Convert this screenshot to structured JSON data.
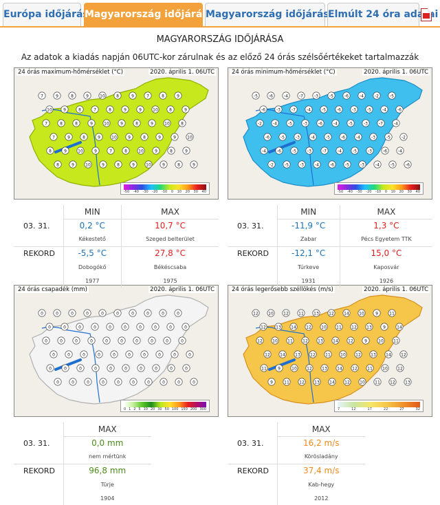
{
  "tabs": [
    {
      "label": "Európa időjárása",
      "active": false
    },
    {
      "label": "Magyarország időjárása I.",
      "active": true
    },
    {
      "label": "Magyarország időjárása II.",
      "active": false
    },
    {
      "label": "Elmúlt 24 óra adatai",
      "active": false
    }
  ],
  "pdf_icon": "pdf-icon",
  "page": {
    "title": "MAGYARORSZÁG IDŐJÁRÁSA",
    "subtitle": "Az adatok a kiadás napján 06UTC-kor zárulnak és az előző 24 órás szélsőértékeket tartalmazzák"
  },
  "maps": {
    "tmax": {
      "label": "24 órás maximum-hőmérséklet (°C)",
      "date": "2020. április 1. 06UTC",
      "fill": "#c8e81e",
      "stroke": "#8fb000",
      "legend": [
        "-50",
        "-40",
        "-30",
        "-20",
        "-10",
        "0",
        "10",
        "20",
        "30",
        "40"
      ],
      "values": [
        "7",
        "9",
        "8",
        "9",
        "10",
        "8",
        "9",
        "7",
        "8",
        "9",
        "10",
        "9",
        "8",
        "7",
        "8",
        "9",
        "9",
        "10",
        "8",
        "9",
        "7",
        "8",
        "8",
        "9",
        "10",
        "9",
        "8",
        "9",
        "10",
        "8",
        "7",
        "9",
        "8",
        "9",
        "10",
        "9",
        "8",
        "9",
        "9",
        "10",
        "8",
        "9",
        "10",
        "9",
        "7",
        "8",
        "10",
        "9",
        "8",
        "9",
        "8",
        "9",
        "10",
        "9",
        "8",
        "9",
        "10",
        "9",
        "8",
        "9"
      ]
    },
    "tmin": {
      "label": "24 órás minimum-hőmérséklet (°C)",
      "date": "2020. április 1. 06UTC",
      "fill": "#3fbfee",
      "stroke": "#1c8cc8",
      "legend": [
        "-50",
        "-40",
        "-30",
        "-20",
        "-10",
        "0",
        "10",
        "20",
        "30",
        "40"
      ],
      "values": [
        "-5",
        "-6",
        "-4",
        "-7",
        "-3",
        "-5",
        "-6",
        "-4",
        "-2",
        "-5",
        "-6",
        "-3",
        "-7",
        "-4",
        "-5",
        "-6",
        "-3",
        "-5",
        "-4",
        "-6",
        "-2",
        "-4",
        "-5",
        "-3",
        "-6",
        "-4",
        "-5",
        "-3",
        "-7",
        "-4",
        "-6",
        "-5",
        "-3",
        "-4",
        "-5",
        "-6",
        "-4",
        "-3",
        "-5",
        "-2",
        "-4",
        "-6",
        "-5",
        "-3",
        "-7",
        "-4",
        "-5",
        "-3",
        "-6",
        "-4",
        "-2",
        "-5",
        "-3",
        "-4",
        "-6",
        "-5",
        "-3",
        "-4",
        "-5",
        "-6"
      ]
    },
    "precip": {
      "label": "24 órás csapadék (mm)",
      "date": "2020. április 1. 06UTC",
      "fill": "#f4f4f4",
      "stroke": "#b0b0b0",
      "legend": [
        "0",
        "1",
        "2",
        "5",
        "10",
        "20",
        "30",
        "50",
        "100",
        "150",
        "200",
        "300"
      ],
      "values": [
        "0",
        "0",
        "0",
        "0",
        "0",
        "0",
        "0",
        "0",
        "0",
        "0",
        "0",
        "0",
        "0",
        "0",
        "0",
        "0",
        "0",
        "0",
        "0",
        "0",
        "0",
        "0",
        "0",
        "0",
        "0",
        "0",
        "0",
        "0",
        "0",
        "0",
        "0",
        "0",
        "0",
        "0",
        "0",
        "0",
        "0",
        "0",
        "0",
        "0",
        "0",
        "0",
        "0",
        "0",
        "0",
        "0",
        "0",
        "0",
        "0",
        "0",
        "0",
        "0",
        "0",
        "0",
        "0",
        "0",
        "0",
        "0",
        "0",
        "0"
      ]
    },
    "wind": {
      "label": "24 órás legerősebb széllökés (m/s)",
      "date": "2020. április 1. 06UTC",
      "fill": "#f5c64a",
      "stroke": "#d88f1c",
      "legend": [
        "7",
        "12",
        "17",
        "22",
        "27",
        "32"
      ],
      "values": [
        "12",
        "10",
        "12",
        "11",
        "13",
        "12",
        "14",
        "10",
        "9",
        "11",
        "12",
        "13",
        "14",
        "12",
        "10",
        "11",
        "12",
        "13",
        "9",
        "14",
        "12",
        "10",
        "11",
        "12",
        "13",
        "14",
        "12",
        "9",
        "10",
        "11",
        "12",
        "14",
        "13",
        "12",
        "11",
        "10",
        "12",
        "13",
        "14",
        "12",
        "11",
        "9",
        "10",
        "12",
        "13",
        "14",
        "12",
        "11",
        "10",
        "12",
        "9",
        "11",
        "12",
        "13",
        "14",
        "12",
        "10",
        "11",
        "12",
        "13"
      ]
    }
  },
  "tmax_stats": {
    "head_min": "MIN",
    "head_max": "MAX",
    "date": "03. 31.",
    "min_val": "0,2 °C",
    "min_loc": "Kékestető",
    "max_val": "10,7 °C",
    "max_loc": "Szeged belterület",
    "rekord": "REKORD",
    "rec_min_val": "-5,5 °C",
    "rec_min_loc": "Dobogókő",
    "rec_min_year": "1977",
    "rec_max_val": "27,8 °C",
    "rec_max_loc": "Békéscsaba",
    "rec_max_year": "1975"
  },
  "tmin_stats": {
    "head_min": "MIN",
    "head_max": "MAX",
    "date": "03. 31.",
    "min_val": "-11,9 °C",
    "min_loc": "Zabar",
    "max_val": "1,3 °C",
    "max_loc": "Pécs Egyetem TTK",
    "rekord": "REKORD",
    "rec_min_val": "-12,1 °C",
    "rec_min_loc": "Túrkeve",
    "rec_min_year": "1931",
    "rec_max_val": "15,0 °C",
    "rec_max_loc": "Kaposvár",
    "rec_max_year": "1926"
  },
  "precip_stats": {
    "head_max": "MAX",
    "date": "03. 31.",
    "max_val": "0,0 mm",
    "max_loc": "nem mértünk",
    "rekord": "REKORD",
    "rec_max_val": "96,8 mm",
    "rec_max_loc": "Türje",
    "rec_max_year": "1904"
  },
  "wind_stats": {
    "head_max": "MAX",
    "date": "03. 31.",
    "max_val": "16,2 m/s",
    "max_loc": "Körösladány",
    "rekord": "REKORD",
    "rec_max_val": "37,4 m/s",
    "rec_max_loc": "Kab-hegy",
    "rec_max_year": "2012"
  }
}
